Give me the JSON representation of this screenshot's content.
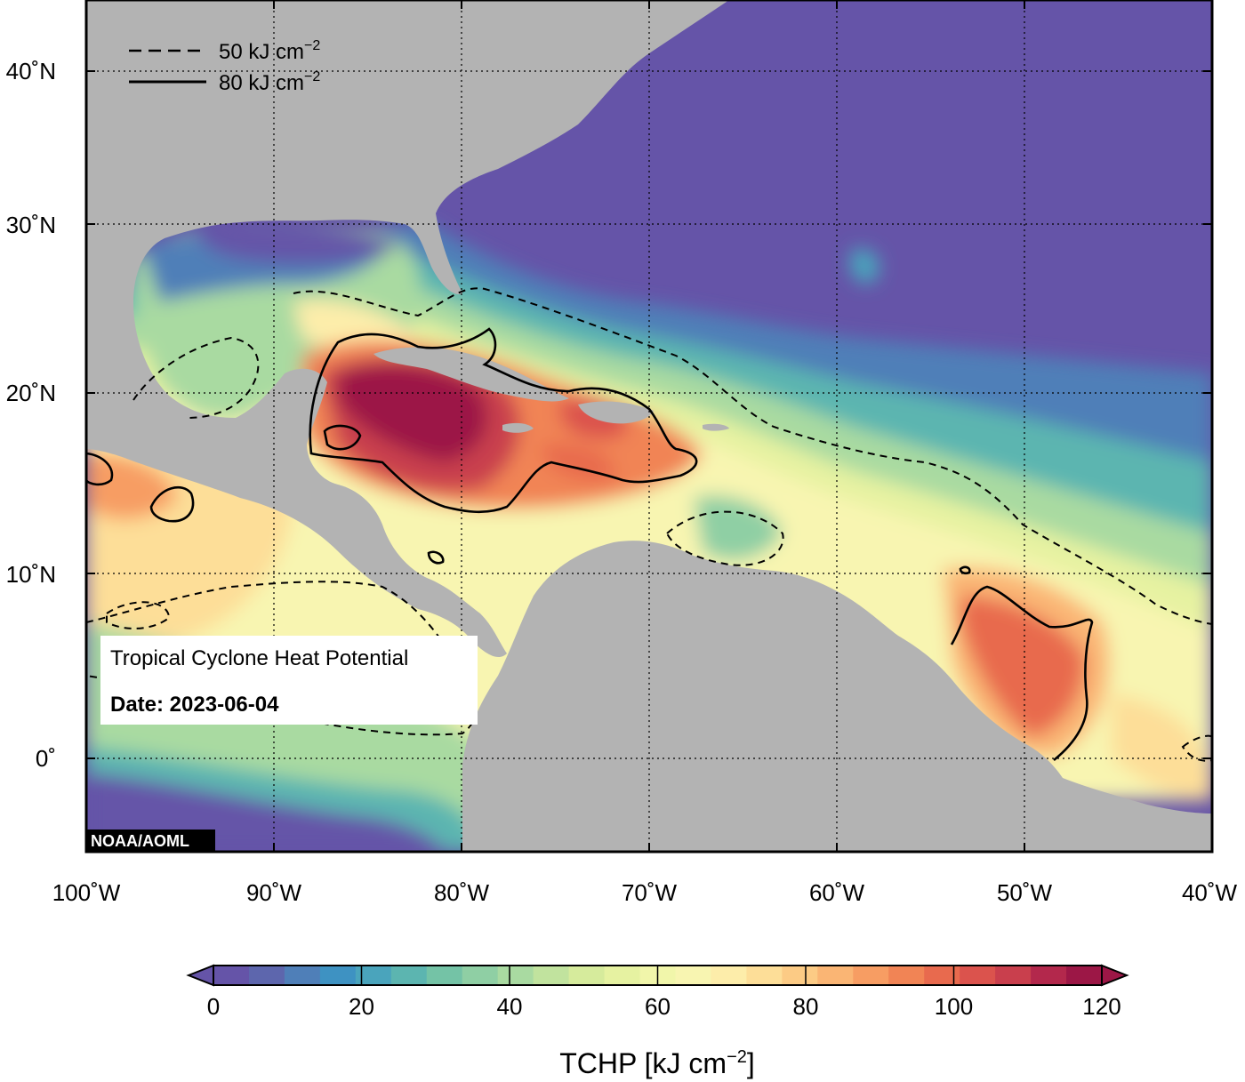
{
  "map": {
    "title": "Tropical Cyclone Heat Potential",
    "date_label": "Date: 2023-06-04",
    "credit": "NOAA/AOML",
    "lon_labels": [
      "100˚W",
      "90˚W",
      "80˚W",
      "70˚W",
      "60˚W",
      "50˚W",
      "40˚W"
    ],
    "lat_labels": [
      "40˚N",
      "30˚N",
      "20˚N",
      "10˚N",
      "0˚"
    ],
    "extent": {
      "lon_min": -100,
      "lon_max": -40,
      "lat_min": -6,
      "lat_max": 44
    },
    "land_color": "#b3b3b3",
    "legend": {
      "dashed_value": "50 kJ cm",
      "solid_value": "80 kJ cm",
      "exponent": "−2"
    }
  },
  "colorbar": {
    "ticks": [
      "0",
      "20",
      "40",
      "60",
      "80",
      "100",
      "120"
    ],
    "label_main": "TCHP [kJ cm",
    "label_exp": "−2",
    "label_close": "]",
    "range": [
      0,
      120
    ],
    "colors": [
      "#6554a8",
      "#5d66ad",
      "#4f7fb8",
      "#3e92c2",
      "#4aa4bc",
      "#5cb5b0",
      "#74c3a6",
      "#8fcfa4",
      "#a9daa1",
      "#c1e39e",
      "#d6eb9c",
      "#e6f2a1",
      "#f1f6aa",
      "#f8f5b1",
      "#fdedaa",
      "#fdde98",
      "#fccb85",
      "#fab574",
      "#f79d63",
      "#f18455",
      "#e86a4e",
      "#db534d",
      "#c93f4d",
      "#b3284c",
      "#9c1746"
    ]
  }
}
